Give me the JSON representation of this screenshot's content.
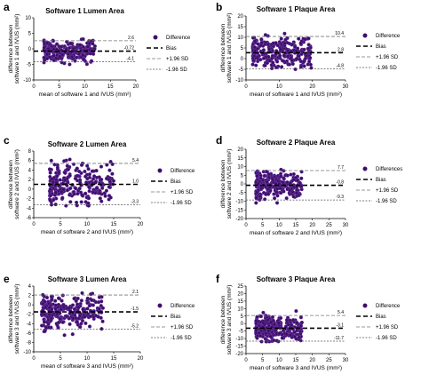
{
  "chart_data": [
    {
      "letter": "a",
      "type": "scatter",
      "title": "Software 1 Lumen Area",
      "xlabel": "mean of software 1 and IVUS (mm²)",
      "ylabel": [
        "difference between",
        "software 1 and IVUS (mm²)"
      ],
      "xlim": [
        0,
        20
      ],
      "ylim": [
        -10,
        10
      ],
      "xticks": [
        0,
        5,
        10,
        15,
        20
      ],
      "yticks": [
        -10,
        -5,
        0,
        5,
        10
      ],
      "bias": -0.72,
      "upper": 2.6,
      "lower": -4.1,
      "bias_label": "-0.72",
      "upper_label": "2.6",
      "lower_label": "-4.1",
      "legend": [
        "Difference",
        "Bias",
        "+1.96 SD",
        "-1.96 SD"
      ],
      "cluster": {
        "x_range": [
          2,
          12
        ],
        "y_range": [
          -6,
          5
        ]
      }
    },
    {
      "letter": "b",
      "type": "scatter",
      "title": "Software 1 Plaque Area",
      "xlabel": "mean of software 1 and IVUS (mm²)",
      "ylabel": [
        "difference between",
        "software 1 and IVUS (mm²)"
      ],
      "xlim": [
        0,
        30
      ],
      "ylim": [
        -10,
        20
      ],
      "xticks": [
        0,
        10,
        20,
        30
      ],
      "yticks": [
        -10,
        -5,
        0,
        5,
        10,
        15,
        20
      ],
      "bias": 2.8,
      "upper": 10.4,
      "lower": -4.8,
      "bias_label": "2.8",
      "upper_label": "10.4",
      "lower_label": "-4.8",
      "legend": [
        "Difference",
        "Bias",
        "+1.96 SD",
        "-1.96 SD"
      ],
      "cluster": {
        "x_range": [
          2,
          20
        ],
        "y_range": [
          -5,
          14
        ]
      }
    },
    {
      "letter": "c",
      "type": "scatter",
      "title": "Software 2 Lumen Area",
      "xlabel": "mean of software 2 and IVUS (mm²)",
      "ylabel": [
        "difference between",
        "software 2 and IVUS (mm²)"
      ],
      "xlim": [
        0,
        20
      ],
      "ylim": [
        -6,
        8
      ],
      "xticks": [
        0,
        5,
        10,
        15,
        20
      ],
      "yticks": [
        -6,
        -4,
        -2,
        0,
        2,
        4,
        6,
        8
      ],
      "bias": 1.0,
      "upper": 5.4,
      "lower": -3.3,
      "bias_label": "1.0",
      "upper_label": "5.4",
      "lower_label": "-3.3",
      "legend": [
        "Difference",
        "Bias",
        "+1.96 SD",
        "-1.96 SD"
      ],
      "cluster": {
        "x_range": [
          3,
          15
        ],
        "y_range": [
          -3.5,
          6.5
        ]
      }
    },
    {
      "letter": "d",
      "type": "scatter",
      "title": "Software 2 Plaque Area",
      "xlabel": "mean of software 2 and IVUS (mm²)",
      "ylabel": [
        "difference between",
        "software 2 and IVUS (mm²)"
      ],
      "xlim": [
        0,
        30
      ],
      "ylim": [
        -20,
        20
      ],
      "xticks": [
        0,
        5,
        10,
        15,
        20,
        25,
        30
      ],
      "yticks": [
        -20,
        -15,
        -10,
        -5,
        0,
        5,
        10,
        15,
        20
      ],
      "bias": -0.8,
      "upper": 7.7,
      "lower": -9.3,
      "bias_label": "-0.8",
      "upper_label": "7.7",
      "lower_label": "-9.3",
      "legend": [
        "Differences",
        "Bias",
        "+1.96 SD",
        "-1.96 SD"
      ],
      "cluster": {
        "x_range": [
          3,
          17
        ],
        "y_range": [
          -11,
          13
        ]
      }
    },
    {
      "letter": "e",
      "type": "scatter",
      "title": "Software 3 Lumen Area",
      "xlabel": "mean of software 3 and IVUS (mm²)",
      "ylabel": [
        "difference between",
        "software 3 and IVUS (mm²)"
      ],
      "xlim": [
        0,
        20
      ],
      "ylim": [
        -10,
        4
      ],
      "xticks": [
        0,
        5,
        10,
        15,
        20
      ],
      "yticks": [
        -10,
        -8,
        -6,
        -4,
        -2,
        0,
        2,
        4
      ],
      "bias": -1.5,
      "upper": 2.1,
      "lower": -5.2,
      "bias_label": "-1.5",
      "upper_label": "2.1",
      "lower_label": "-5.2",
      "legend": [
        "Difference",
        "Bias",
        "+1.96 SD",
        "-1.96 SD"
      ],
      "cluster": {
        "x_range": [
          1.5,
          13
        ],
        "y_range": [
          -8,
          2.5
        ]
      }
    },
    {
      "letter": "f",
      "type": "scatter",
      "title": "Software 3 Plaque Area",
      "xlabel": "mean of software 3 and IVUS (mm²)",
      "ylabel": [
        "difference between",
        "software 3 and IVUS (mm²)"
      ],
      "xlim": [
        0,
        30
      ],
      "ylim": [
        -20,
        25
      ],
      "xticks": [
        0,
        5,
        10,
        15,
        20,
        25,
        30
      ],
      "yticks": [
        -20,
        -15,
        -10,
        -5,
        0,
        5,
        10,
        15,
        20,
        25
      ],
      "bias": -3.1,
      "upper": 5.4,
      "lower": -11.7,
      "bias_label": "-3.1",
      "upper_label": "5.4",
      "lower_label": "-11.7",
      "legend": [
        "Difference",
        "Bias",
        "+1.96 SD",
        "-1.96 SD"
      ],
      "cluster": {
        "x_range": [
          3,
          17
        ],
        "y_range": [
          -12,
          13
        ]
      }
    }
  ]
}
